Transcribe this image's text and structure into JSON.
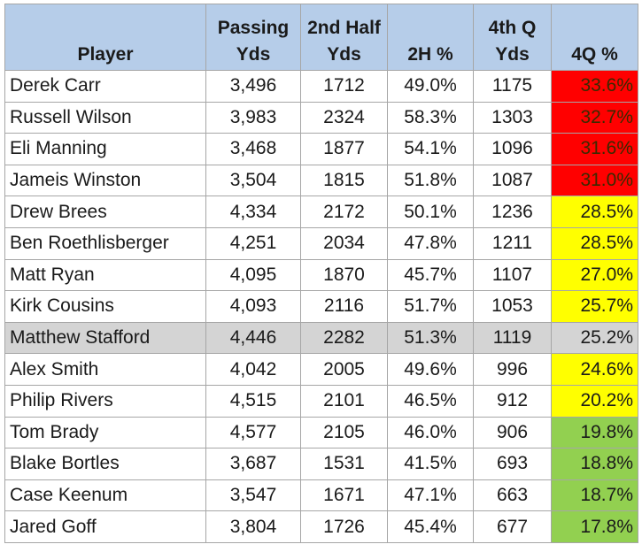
{
  "colors": {
    "header_bg": "#b6cde9",
    "gridline": "#a6a6a6",
    "highlight_row": "#d4d4d4",
    "red": "#ff0000",
    "yellow": "#ffff00",
    "green": "#92d050"
  },
  "table": {
    "headers": {
      "player": {
        "line1": "",
        "line2": "Player"
      },
      "passing": {
        "line1": "Passing",
        "line2": "Yds"
      },
      "second_half": {
        "line1": "2nd Half",
        "line2": "Yds"
      },
      "second_half_pct": {
        "line1": "",
        "line2": "2H %"
      },
      "fourth_q": {
        "line1": "4th Q",
        "line2": "Yds"
      },
      "fourth_q_pct": {
        "line1": "",
        "line2": "4Q %"
      }
    },
    "rows": [
      {
        "player": "Derek Carr",
        "passing_yds": "3,496",
        "second_half_yds": "1712",
        "second_half_pct": "49.0%",
        "fourth_q_yds": "1175",
        "fourth_q_pct": "33.6%",
        "fourth_q_color": "red"
      },
      {
        "player": "Russell Wilson",
        "passing_yds": "3,983",
        "second_half_yds": "2324",
        "second_half_pct": "58.3%",
        "fourth_q_yds": "1303",
        "fourth_q_pct": "32.7%",
        "fourth_q_color": "red"
      },
      {
        "player": "Eli Manning",
        "passing_yds": "3,468",
        "second_half_yds": "1877",
        "second_half_pct": "54.1%",
        "fourth_q_yds": "1096",
        "fourth_q_pct": "31.6%",
        "fourth_q_color": "red"
      },
      {
        "player": "Jameis Winston",
        "passing_yds": "3,504",
        "second_half_yds": "1815",
        "second_half_pct": "51.8%",
        "fourth_q_yds": "1087",
        "fourth_q_pct": "31.0%",
        "fourth_q_color": "red"
      },
      {
        "player": "Drew Brees",
        "passing_yds": "4,334",
        "second_half_yds": "2172",
        "second_half_pct": "50.1%",
        "fourth_q_yds": "1236",
        "fourth_q_pct": "28.5%",
        "fourth_q_color": "yellow"
      },
      {
        "player": "Ben Roethlisberger",
        "passing_yds": "4,251",
        "second_half_yds": "2034",
        "second_half_pct": "47.8%",
        "fourth_q_yds": "1211",
        "fourth_q_pct": "28.5%",
        "fourth_q_color": "yellow"
      },
      {
        "player": "Matt Ryan",
        "passing_yds": "4,095",
        "second_half_yds": "1870",
        "second_half_pct": "45.7%",
        "fourth_q_yds": "1107",
        "fourth_q_pct": "27.0%",
        "fourth_q_color": "yellow"
      },
      {
        "player": "Kirk Cousins",
        "passing_yds": "4,093",
        "second_half_yds": "2116",
        "second_half_pct": "51.7%",
        "fourth_q_yds": "1053",
        "fourth_q_pct": "25.7%",
        "fourth_q_color": "yellow"
      },
      {
        "player": "Matthew Stafford",
        "passing_yds": "4,446",
        "second_half_yds": "2282",
        "second_half_pct": "51.3%",
        "fourth_q_yds": "1119",
        "fourth_q_pct": "25.2%",
        "fourth_q_color": "plain",
        "highlighted": true
      },
      {
        "player": "Alex Smith",
        "passing_yds": "4,042",
        "second_half_yds": "2005",
        "second_half_pct": "49.6%",
        "fourth_q_yds": "996",
        "fourth_q_pct": "24.6%",
        "fourth_q_color": "yellow"
      },
      {
        "player": "Philip Rivers",
        "passing_yds": "4,515",
        "second_half_yds": "2101",
        "second_half_pct": "46.5%",
        "fourth_q_yds": "912",
        "fourth_q_pct": "20.2%",
        "fourth_q_color": "yellow"
      },
      {
        "player": "Tom Brady",
        "passing_yds": "4,577",
        "second_half_yds": "2105",
        "second_half_pct": "46.0%",
        "fourth_q_yds": "906",
        "fourth_q_pct": "19.8%",
        "fourth_q_color": "green"
      },
      {
        "player": "Blake Bortles",
        "passing_yds": "3,687",
        "second_half_yds": "1531",
        "second_half_pct": "41.5%",
        "fourth_q_yds": "693",
        "fourth_q_pct": "18.8%",
        "fourth_q_color": "green"
      },
      {
        "player": "Case Keenum",
        "passing_yds": "3,547",
        "second_half_yds": "1671",
        "second_half_pct": "47.1%",
        "fourth_q_yds": "663",
        "fourth_q_pct": "18.7%",
        "fourth_q_color": "green"
      },
      {
        "player": "Jared Goff",
        "passing_yds": "3,804",
        "second_half_yds": "1726",
        "second_half_pct": "45.4%",
        "fourth_q_yds": "677",
        "fourth_q_pct": "17.8%",
        "fourth_q_color": "green"
      }
    ]
  }
}
